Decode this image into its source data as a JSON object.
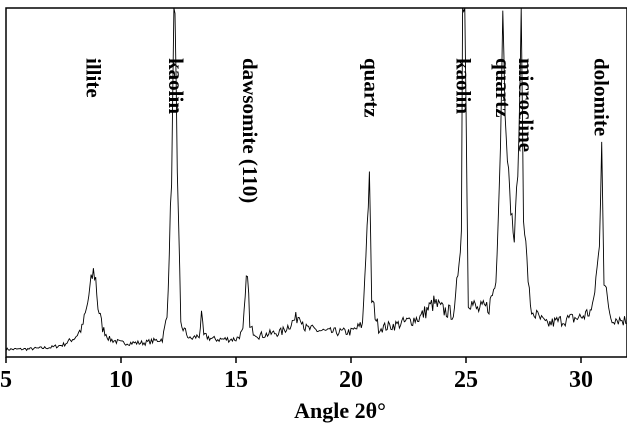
{
  "chart_data": {
    "type": "line",
    "title": "",
    "xlabel": "Angle 2θ°",
    "ylabel": "",
    "xlim": [
      5,
      32
    ],
    "ylim": [
      0,
      1
    ],
    "grid": false,
    "xticks": [
      5,
      10,
      15,
      20,
      25,
      30
    ],
    "annotations": [
      {
        "text": "illite",
        "x": 8.8
      },
      {
        "text": "kaolin",
        "x": 12.4
      },
      {
        "text": "dawsomite (110)",
        "x": 15.6
      },
      {
        "text": "quartz",
        "x": 20.9
      },
      {
        "text": "kaolin",
        "x": 24.9
      },
      {
        "text": "quartz",
        "x": 26.6
      },
      {
        "text": "microcline",
        "x": 27.6
      },
      {
        "text": "dolomite",
        "x": 30.9
      }
    ],
    "series": [
      {
        "points": [
          [
            5.0,
            0.012
          ],
          [
            6.0,
            0.013
          ],
          [
            7.0,
            0.018
          ],
          [
            7.5,
            0.025
          ],
          [
            8.0,
            0.045
          ],
          [
            8.3,
            0.07
          ],
          [
            8.5,
            0.12
          ],
          [
            8.7,
            0.2
          ],
          [
            8.8,
            0.23
          ],
          [
            8.9,
            0.21
          ],
          [
            9.0,
            0.13
          ],
          [
            9.2,
            0.07
          ],
          [
            9.5,
            0.04
          ],
          [
            10.0,
            0.03
          ],
          [
            11.0,
            0.03
          ],
          [
            11.8,
            0.04
          ],
          [
            12.0,
            0.1
          ],
          [
            12.2,
            0.5
          ],
          [
            12.3,
            1.0
          ],
          [
            12.35,
            1.0
          ],
          [
            12.45,
            0.5
          ],
          [
            12.6,
            0.08
          ],
          [
            13.0,
            0.04
          ],
          [
            13.4,
            0.05
          ],
          [
            13.5,
            0.1
          ],
          [
            13.6,
            0.05
          ],
          [
            14.0,
            0.04
          ],
          [
            15.0,
            0.04
          ],
          [
            15.3,
            0.06
          ],
          [
            15.5,
            0.24
          ],
          [
            15.6,
            0.07
          ],
          [
            16.0,
            0.05
          ],
          [
            17.0,
            0.06
          ],
          [
            17.5,
            0.09
          ],
          [
            17.8,
            0.11
          ],
          [
            18.0,
            0.07
          ],
          [
            19.0,
            0.06
          ],
          [
            20.0,
            0.06
          ],
          [
            20.5,
            0.08
          ],
          [
            20.8,
            0.5
          ],
          [
            20.9,
            0.15
          ],
          [
            21.2,
            0.07
          ],
          [
            22.0,
            0.08
          ],
          [
            23.0,
            0.1
          ],
          [
            23.6,
            0.14
          ],
          [
            24.0,
            0.12
          ],
          [
            24.5,
            0.11
          ],
          [
            24.8,
            0.35
          ],
          [
            24.85,
            1.0
          ],
          [
            24.95,
            1.0
          ],
          [
            25.1,
            0.15
          ],
          [
            25.5,
            0.12
          ],
          [
            26.0,
            0.13
          ],
          [
            26.3,
            0.2
          ],
          [
            26.5,
            0.6
          ],
          [
            26.6,
            1.0
          ],
          [
            26.7,
            0.7
          ],
          [
            26.9,
            0.45
          ],
          [
            27.1,
            0.32
          ],
          [
            27.3,
            0.6
          ],
          [
            27.4,
            1.0
          ],
          [
            27.5,
            0.4
          ],
          [
            27.8,
            0.12
          ],
          [
            28.5,
            0.08
          ],
          [
            29.0,
            0.09
          ],
          [
            30.0,
            0.1
          ],
          [
            30.5,
            0.12
          ],
          [
            30.8,
            0.3
          ],
          [
            30.9,
            0.62
          ],
          [
            31.0,
            0.2
          ],
          [
            31.3,
            0.1
          ],
          [
            32.0,
            0.09
          ]
        ]
      }
    ]
  }
}
